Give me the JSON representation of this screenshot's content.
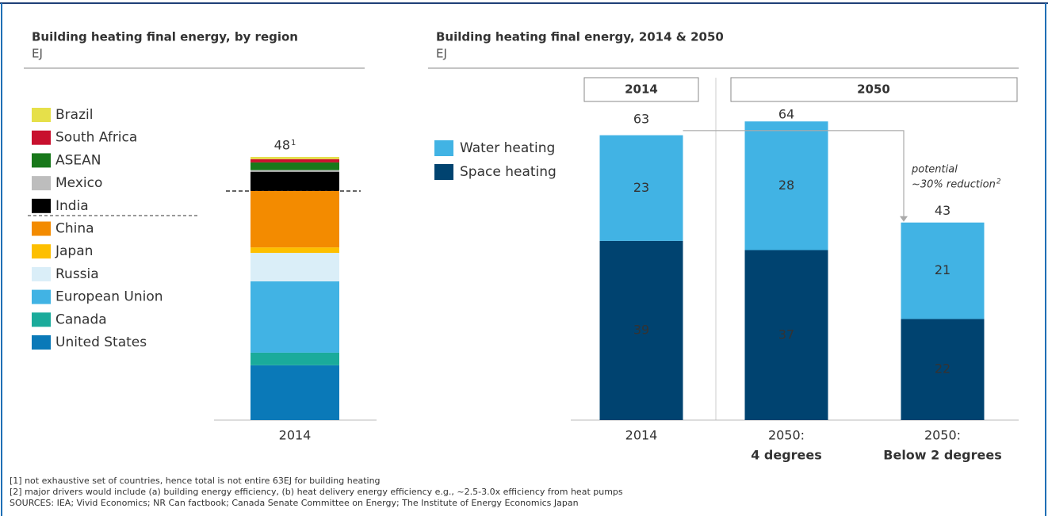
{
  "chart_data": [
    {
      "type": "stacked_bar",
      "title": "Building heating final energy, by region",
      "subtitle": "EJ",
      "categories": [
        "2014"
      ],
      "total": 48,
      "total_footnote": "1",
      "series": [
        {
          "name": "United States",
          "color": "#0a79b8",
          "values": [
            10
          ]
        },
        {
          "name": "Canada",
          "color": "#1aab9b",
          "values": [
            2.3
          ]
        },
        {
          "name": "European Union",
          "color": "#41b3e4",
          "values": [
            13
          ]
        },
        {
          "name": "Russia",
          "color": "#daeef8",
          "values": [
            5.2
          ]
        },
        {
          "name": "Japan",
          "color": "#fdbf00",
          "values": [
            1
          ]
        },
        {
          "name": "China",
          "color": "#f38b00",
          "values": [
            10.3
          ]
        },
        {
          "name": "India",
          "color": "#000000",
          "values": [
            3.5
          ]
        },
        {
          "name": "Mexico",
          "color": "#bdbdbd",
          "values": [
            0.3
          ]
        },
        {
          "name": "ASEAN",
          "color": "#18781a",
          "values": [
            1.4
          ]
        },
        {
          "name": "South Africa",
          "color": "#c8102e",
          "values": [
            0.6
          ]
        },
        {
          "name": "Brazil",
          "color": "#e6e04a",
          "values": [
            0.4
          ]
        }
      ],
      "ylim": [
        0,
        48
      ]
    },
    {
      "type": "stacked_bar",
      "title": "Building heating final energy, 2014 & 2050",
      "subtitle": "EJ",
      "group_headers": [
        "2014",
        "2050"
      ],
      "categories": [
        "2014",
        "2050:",
        "2050:"
      ],
      "category_sublabels": [
        null,
        "4 degrees",
        "Below 2 degrees"
      ],
      "series": [
        {
          "name": "Space heating",
          "color": "#004370",
          "values": [
            39,
            37,
            22
          ]
        },
        {
          "name": "Water heating",
          "color": "#41b3e4",
          "values": [
            23,
            28,
            21
          ]
        }
      ],
      "totals": [
        63,
        64,
        43
      ],
      "annotation": [
        "potential",
        "~30% reduction"
      ],
      "annotation_footnote": "2",
      "ylim": [
        0,
        64
      ]
    }
  ],
  "footnotes": [
    "[1] not exhaustive set of countries, hence total is not entire 63EJ for building heating",
    "[2] major drivers would include (a) building energy efficiency, (b) heat delivery energy efficiency e.g., ~2.5-3.0x efficiency from heat pumps",
    "SOURCES: IEA; Vivid Economics; NR Can factbook; Canada Senate Committee on Energy; The Institute of Energy Economics Japan"
  ]
}
